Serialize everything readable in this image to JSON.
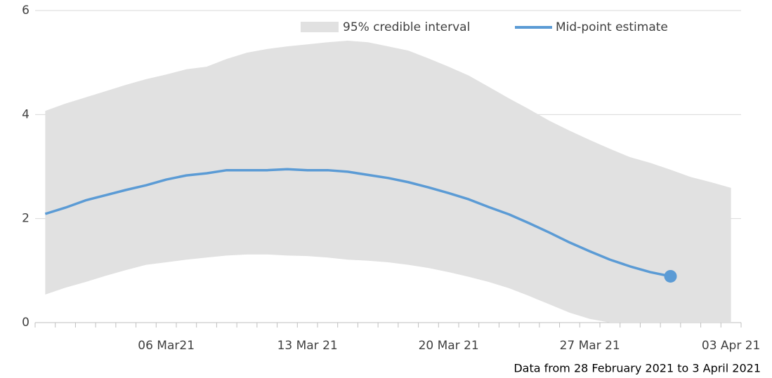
{
  "chart_data": {
    "type": "band-line",
    "note": "Data from 28 February 2021 to 3 April 2021",
    "categories": [
      null,
      null,
      null,
      null,
      null,
      null,
      "06 Mar21",
      null,
      null,
      null,
      null,
      null,
      null,
      "13 Mar 21",
      null,
      null,
      null,
      null,
      null,
      null,
      "20 Mar 21",
      null,
      null,
      null,
      null,
      null,
      null,
      "27 Mar 21",
      null,
      null,
      null,
      null,
      null,
      null,
      "03 Apr 21"
    ],
    "series": [
      {
        "name": "95% credible interval",
        "color": "#e1e1e1",
        "lower": [
          0.54,
          0.67,
          0.78,
          0.9,
          1.01,
          1.11,
          1.16,
          1.21,
          1.25,
          1.29,
          1.31,
          1.31,
          1.29,
          1.28,
          1.25,
          1.21,
          1.19,
          1.16,
          1.11,
          1.05,
          0.97,
          0.88,
          0.78,
          0.66,
          0.51,
          0.35,
          0.19,
          0.07,
          0,
          0,
          0,
          0,
          0,
          0,
          0
        ],
        "upper": [
          4.07,
          4.21,
          4.33,
          4.45,
          4.57,
          4.68,
          4.77,
          4.87,
          4.92,
          5.07,
          5.19,
          5.26,
          5.31,
          5.35,
          5.39,
          5.42,
          5.39,
          5.31,
          5.23,
          5.08,
          4.92,
          4.75,
          4.53,
          4.31,
          4.1,
          3.88,
          3.69,
          3.51,
          3.34,
          3.18,
          3.07,
          2.94,
          2.8,
          2.7,
          2.59
        ]
      },
      {
        "name": "Mid-point estimate",
        "color": "#5b9bd5",
        "values": [
          2.09,
          2.21,
          2.35,
          2.45,
          2.55,
          2.64,
          2.75,
          2.83,
          2.87,
          2.93,
          2.93,
          2.93,
          2.95,
          2.93,
          2.93,
          2.9,
          2.84,
          2.78,
          2.7,
          2.6,
          2.49,
          2.37,
          2.22,
          2.08,
          1.91,
          1.73,
          1.54,
          1.37,
          1.21,
          1.08,
          0.97,
          0.89,
          null,
          null,
          null
        ]
      }
    ],
    "ylim": [
      0,
      6
    ],
    "yticks": [
      0,
      2,
      4,
      6
    ],
    "grid": true
  }
}
